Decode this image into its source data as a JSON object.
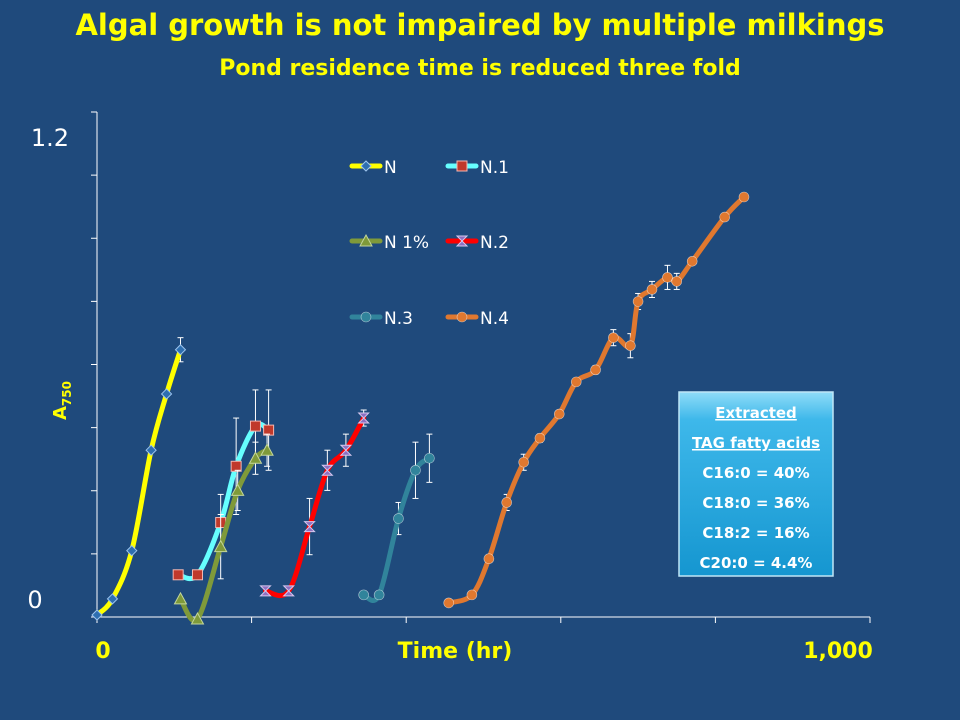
{
  "title": "Algal growth is not impaired by multiple milkings",
  "subtitle": "Pond residence time is reduced three fold",
  "colors": {
    "background": "#1f4a7c",
    "title": "#ffff00",
    "N": "#ffff00",
    "N.1": "#66ffff",
    "N 1%": "#7f9a3a",
    "N.2": "#ff0000",
    "N.3": "#31849b",
    "N.4": "#e0782f"
  },
  "textbox": {
    "lines": [
      "Extracted",
      "TAG fatty acids",
      "C16:0 = 40%",
      "C18:0 = 36%",
      "C18:2 = 16%",
      "C20:0 = 4.4%"
    ]
  },
  "chart_data": {
    "type": "line",
    "xlabel": "Time (hr)",
    "ylabel": "A",
    "ylabel_sub": "750",
    "x_tick_labels": [
      "0",
      "1,000"
    ],
    "y_tick_labels": [
      "0",
      "1.2"
    ],
    "xlim": [
      0,
      1000
    ],
    "ylim": [
      0,
      1.2
    ],
    "legend_position": "top-center",
    "legend_order": [
      "N",
      "N.1",
      "N 1%",
      "N.2",
      "N.3",
      "N.4"
    ],
    "series": [
      {
        "name": "N",
        "marker": "diamond",
        "x": [
          0,
          20,
          45,
          70,
          90,
          108
        ],
        "y": [
          0.01,
          0.05,
          0.17,
          0.42,
          0.56,
          0.67
        ],
        "err": [
          0,
          0,
          0,
          0,
          0,
          0.03
        ]
      },
      {
        "name": "N.1",
        "marker": "square",
        "x": [
          105,
          130,
          160,
          180,
          205,
          222
        ],
        "y": [
          0.11,
          0.11,
          0.24,
          0.38,
          0.48,
          0.47
        ],
        "err": [
          0,
          0,
          0.07,
          0.12,
          0.09,
          0.1
        ]
      },
      {
        "name": "N 1%",
        "marker": "triangle",
        "x": [
          108,
          130,
          160,
          182,
          205,
          220
        ],
        "y": [
          0.05,
          0.0,
          0.18,
          0.32,
          0.4,
          0.42
        ],
        "err": [
          0,
          0,
          0.08,
          0.05,
          0.04,
          0.04
        ]
      },
      {
        "name": "N.2",
        "marker": "bowtie",
        "x": [
          218,
          248,
          275,
          298,
          322,
          345
        ],
        "y": [
          0.07,
          0.07,
          0.23,
          0.37,
          0.42,
          0.5
        ],
        "err": [
          0,
          0,
          0.07,
          0.05,
          0.04,
          0.02
        ]
      },
      {
        "name": "N.3",
        "marker": "circle",
        "x": [
          345,
          365,
          390,
          412,
          430
        ],
        "y": [
          0.06,
          0.06,
          0.25,
          0.37,
          0.4
        ],
        "err": [
          0,
          0,
          0.04,
          0.07,
          0.06
        ]
      },
      {
        "name": "N.4",
        "marker": "circle",
        "x": [
          455,
          485,
          507,
          530,
          552,
          573,
          598,
          620,
          645,
          668,
          690,
          700,
          718,
          738,
          750,
          770,
          812,
          837
        ],
        "y": [
          0.04,
          0.06,
          0.15,
          0.29,
          0.39,
          0.45,
          0.51,
          0.59,
          0.62,
          0.7,
          0.68,
          0.79,
          0.82,
          0.85,
          0.84,
          0.89,
          1.0,
          1.05
        ],
        "err": [
          0,
          0,
          0,
          0.02,
          0.02,
          0.01,
          0,
          0,
          0.01,
          0.02,
          0.03,
          0.02,
          0.02,
          0.03,
          0.02,
          0,
          0,
          0
        ]
      }
    ]
  }
}
